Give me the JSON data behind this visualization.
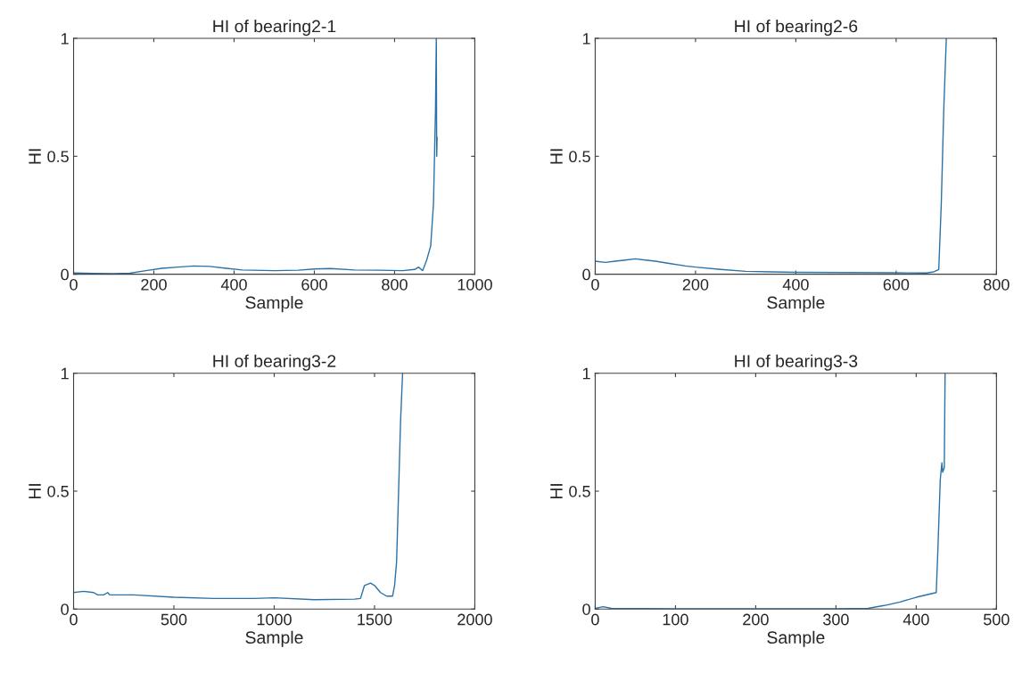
{
  "chart_data": [
    {
      "type": "line",
      "title": "HI of bearing2-1",
      "xlabel": "Sample",
      "ylabel": "HI",
      "xlim": [
        0,
        1000
      ],
      "ylim": [
        0,
        1
      ],
      "xticks": [
        0,
        200,
        400,
        600,
        800,
        1000
      ],
      "yticks": [
        0,
        0.5,
        1
      ],
      "grid": false,
      "legend": false,
      "series": [
        {
          "color": "#2a72a8",
          "x": [
            0,
            50,
            100,
            140,
            180,
            220,
            260,
            300,
            340,
            380,
            420,
            500,
            560,
            600,
            640,
            700,
            760,
            820,
            850,
            860,
            870,
            880,
            890,
            897,
            902,
            904,
            905,
            906
          ],
          "values": [
            0.005,
            0.003,
            0.002,
            0.004,
            0.015,
            0.025,
            0.03,
            0.035,
            0.033,
            0.025,
            0.018,
            0.015,
            0.017,
            0.022,
            0.024,
            0.018,
            0.017,
            0.015,
            0.02,
            0.03,
            0.015,
            0.06,
            0.12,
            0.3,
            0.7,
            1.0,
            0.5,
            0.58
          ]
        }
      ]
    },
    {
      "type": "line",
      "title": "HI of bearing2-6",
      "xlabel": "Sample",
      "ylabel": "HI",
      "xlim": [
        0,
        800
      ],
      "ylim": [
        0,
        1
      ],
      "xticks": [
        0,
        200,
        400,
        600,
        800
      ],
      "yticks": [
        0,
        0.5,
        1
      ],
      "grid": false,
      "legend": false,
      "series": [
        {
          "color": "#2a72a8",
          "x": [
            0,
            20,
            40,
            60,
            80,
            100,
            120,
            150,
            180,
            200,
            250,
            300,
            350,
            400,
            500,
            600,
            660,
            675,
            685,
            690,
            695,
            700
          ],
          "values": [
            0.055,
            0.05,
            0.055,
            0.06,
            0.065,
            0.06,
            0.055,
            0.045,
            0.035,
            0.03,
            0.02,
            0.012,
            0.01,
            0.008,
            0.007,
            0.006,
            0.005,
            0.01,
            0.02,
            0.3,
            0.7,
            1.0
          ]
        }
      ]
    },
    {
      "type": "line",
      "title": "HI of bearing3-2",
      "xlabel": "Sample",
      "ylabel": "HI",
      "xlim": [
        0,
        2000
      ],
      "ylim": [
        0,
        1
      ],
      "xticks": [
        0,
        500,
        1000,
        1500,
        2000
      ],
      "yticks": [
        0,
        0.5,
        1
      ],
      "grid": false,
      "legend": false,
      "series": [
        {
          "color": "#2a72a8",
          "x": [
            0,
            50,
            100,
            120,
            150,
            170,
            180,
            300,
            500,
            700,
            900,
            1000,
            1200,
            1400,
            1430,
            1450,
            1480,
            1500,
            1530,
            1560,
            1590,
            1600,
            1610,
            1620,
            1630,
            1640
          ],
          "values": [
            0.07,
            0.075,
            0.07,
            0.06,
            0.06,
            0.07,
            0.06,
            0.06,
            0.05,
            0.045,
            0.045,
            0.048,
            0.04,
            0.042,
            0.045,
            0.1,
            0.11,
            0.1,
            0.07,
            0.055,
            0.055,
            0.1,
            0.2,
            0.5,
            0.8,
            1.0
          ]
        }
      ]
    },
    {
      "type": "line",
      "title": "HI of bearing3-3",
      "xlabel": "Sample",
      "ylabel": "HI",
      "xlim": [
        0,
        500
      ],
      "ylim": [
        0,
        1
      ],
      "xticks": [
        0,
        100,
        200,
        300,
        400,
        500
      ],
      "yticks": [
        0,
        0.5,
        1
      ],
      "grid": false,
      "legend": false,
      "series": [
        {
          "color": "#2a72a8",
          "x": [
            0,
            10,
            20,
            100,
            200,
            300,
            340,
            360,
            380,
            400,
            425,
            427,
            430,
            432,
            433,
            435,
            436
          ],
          "values": [
            0.003,
            0.01,
            0.003,
            0.001,
            0.001,
            0.001,
            0.003,
            0.015,
            0.03,
            0.05,
            0.07,
            0.25,
            0.55,
            0.62,
            0.58,
            0.6,
            1.0
          ]
        }
      ]
    }
  ]
}
